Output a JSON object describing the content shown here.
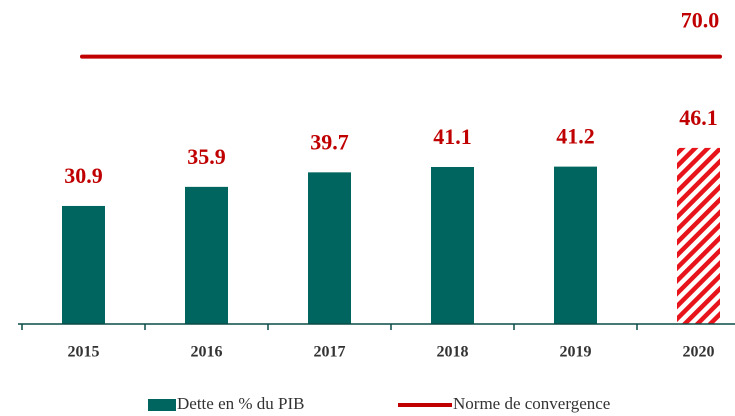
{
  "chart_data": {
    "type": "bar",
    "categories": [
      "2015",
      "2016",
      "2017",
      "2018",
      "2019",
      "2020"
    ],
    "series": [
      {
        "name": "Dette en % du PIB",
        "color": "#00655f",
        "values": [
          30.9,
          35.9,
          39.7,
          41.1,
          41.2,
          46.1
        ],
        "hatched": [
          false,
          false,
          false,
          false,
          false,
          true
        ]
      }
    ],
    "convergence": {
      "name": "Norme de convergence",
      "color": "#c00000",
      "value": 70,
      "value_label": "70.0"
    },
    "ylim": [
      0,
      80
    ]
  }
}
